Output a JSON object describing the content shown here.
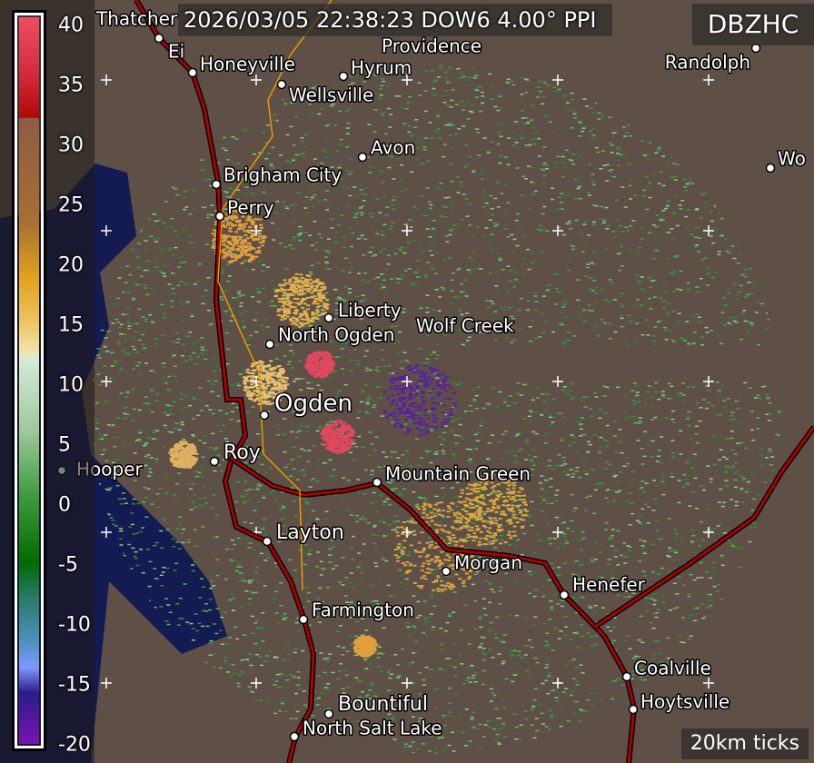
{
  "header": {
    "title": "2026/03/05 22:38:23 DOW6 4.00° PPI",
    "product": "DBZHC"
  },
  "footer": {
    "tick_label": "20km ticks"
  },
  "colorbar": {
    "ticks": [
      "40",
      "35",
      "30",
      "25",
      "20",
      "15",
      "10",
      "5",
      "0",
      "-5",
      "-10",
      "-15",
      "-20"
    ]
  },
  "colors": {
    "background": "#5e5047",
    "lake": "#141a52",
    "road": "#b00000",
    "minor_road": "#e59a00"
  },
  "cities": [
    "Thatcher",
    "Ei",
    "Providence",
    "Honeyville",
    "Wellsville",
    "Hyrum",
    "Randolph",
    "Avon",
    "Wo",
    "Brigham City",
    "Perry",
    "Liberty",
    "Wolf Creek",
    "North Ogden",
    "Ogden",
    "Roy",
    "Hooper",
    "Mountain Green",
    "Layton",
    "Morgan",
    "Henefer",
    "Farmington",
    "Coalville",
    "Hoytsville",
    "Bountiful",
    "North Salt Lake"
  ]
}
